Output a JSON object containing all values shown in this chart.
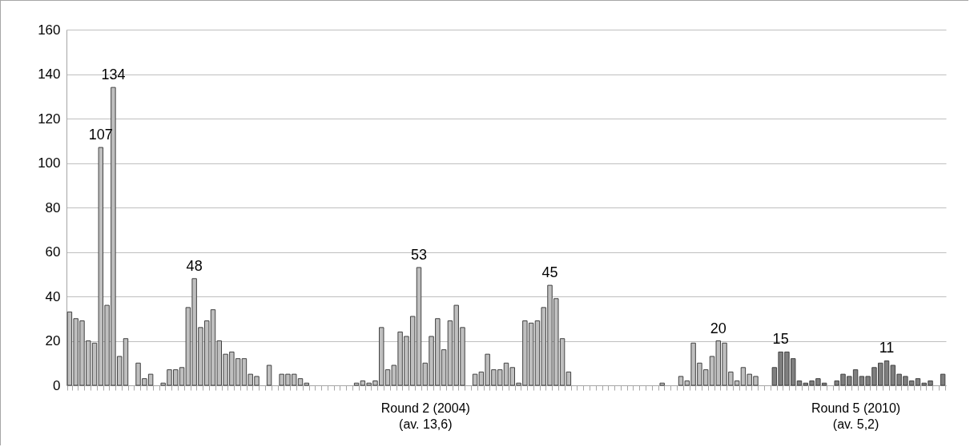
{
  "chart_data": {
    "type": "bar",
    "categories": [
      null,
      null,
      null,
      null,
      null,
      null,
      null,
      null,
      null,
      null,
      null,
      null,
      null,
      null,
      null,
      null,
      null,
      null,
      null,
      null,
      null,
      null,
      null,
      null,
      null,
      null,
      null,
      null,
      null,
      null,
      null,
      null,
      null,
      null,
      null,
      null,
      null,
      null,
      null,
      null,
      null,
      null,
      null,
      null,
      null,
      null,
      null,
      null,
      null,
      null,
      null,
      null,
      null,
      null,
      null,
      null,
      null,
      "Round 2 (2004)\n(av. 13,6)",
      null,
      null,
      null,
      null,
      null,
      null,
      null,
      null,
      null,
      null,
      null,
      null,
      null,
      null,
      null,
      null,
      null,
      null,
      null,
      null,
      null,
      null,
      null,
      null,
      null,
      null,
      null,
      null,
      null,
      null,
      null,
      null,
      null,
      null,
      null,
      null,
      null,
      null,
      null,
      null,
      null,
      null,
      null,
      null,
      null,
      null,
      null,
      null,
      null,
      null,
      null,
      null,
      null,
      null,
      null,
      null,
      null,
      null,
      null,
      null,
      null,
      null,
      null,
      null,
      null,
      null,
      null,
      null,
      "Round 5 (2010)\n(av. 5,2)",
      null,
      null,
      null,
      null,
      null,
      null,
      null,
      null,
      null,
      null,
      null,
      null,
      null,
      null
    ],
    "values": [
      33,
      30,
      29,
      20,
      19,
      107,
      36,
      134,
      13,
      21,
      0,
      10,
      3,
      5,
      0,
      1,
      7,
      7,
      8,
      35,
      48,
      26,
      29,
      34,
      20,
      14,
      15,
      12,
      12,
      5,
      4,
      0,
      9,
      0,
      5,
      5,
      5,
      3,
      1,
      0,
      0,
      0,
      0,
      0,
      0,
      0,
      1,
      2,
      1,
      2,
      26,
      7,
      9,
      24,
      22,
      31,
      53,
      10,
      22,
      30,
      16,
      29,
      36,
      26,
      0,
      5,
      6,
      14,
      7,
      7,
      10,
      8,
      1,
      29,
      28,
      29,
      35,
      45,
      39,
      21,
      6,
      0,
      0,
      0,
      0,
      0,
      0,
      0,
      0,
      0,
      0,
      0,
      0,
      0,
      0,
      1,
      0,
      0,
      4,
      2,
      19,
      10,
      7,
      13,
      20,
      19,
      6,
      2,
      8,
      5,
      4,
      0,
      0,
      8,
      15,
      15,
      12,
      2,
      1,
      2,
      3,
      1,
      0,
      2,
      5,
      4,
      7,
      4,
      4,
      8,
      10,
      11,
      9,
      5,
      4,
      2,
      3,
      1,
      2,
      0,
      5
    ],
    "value_labels": [
      null,
      null,
      null,
      null,
      null,
      "107",
      null,
      "134",
      null,
      null,
      null,
      null,
      null,
      null,
      null,
      null,
      null,
      null,
      null,
      null,
      "48",
      null,
      null,
      null,
      null,
      null,
      null,
      null,
      null,
      null,
      null,
      null,
      null,
      null,
      null,
      null,
      null,
      null,
      null,
      null,
      null,
      null,
      null,
      null,
      null,
      null,
      null,
      null,
      null,
      null,
      null,
      null,
      null,
      null,
      null,
      null,
      "53",
      null,
      null,
      null,
      null,
      null,
      null,
      null,
      null,
      null,
      null,
      null,
      null,
      null,
      null,
      null,
      null,
      null,
      null,
      null,
      null,
      "45",
      null,
      null,
      null,
      null,
      null,
      null,
      null,
      null,
      null,
      null,
      null,
      null,
      null,
      null,
      null,
      null,
      null,
      null,
      null,
      null,
      null,
      null,
      null,
      null,
      null,
      null,
      "20",
      null,
      null,
      null,
      null,
      null,
      null,
      null,
      null,
      null,
      "15",
      null,
      null,
      null,
      null,
      null,
      null,
      null,
      null,
      null,
      null,
      null,
      null,
      null,
      null,
      null,
      null,
      "11",
      null,
      null,
      null,
      null,
      null,
      null,
      null,
      null,
      null
    ],
    "colors": [
      "#bfbfbf",
      "#bfbfbf",
      "#bfbfbf",
      "#bfbfbf",
      "#bfbfbf",
      "#bfbfbf",
      "#bfbfbf",
      "#bfbfbf",
      "#bfbfbf",
      "#bfbfbf",
      "#bfbfbf",
      "#bfbfbf",
      "#bfbfbf",
      "#bfbfbf",
      "#bfbfbf",
      "#bfbfbf",
      "#bfbfbf",
      "#bfbfbf",
      "#bfbfbf",
      "#bfbfbf",
      "#bfbfbf",
      "#bfbfbf",
      "#bfbfbf",
      "#bfbfbf",
      "#bfbfbf",
      "#bfbfbf",
      "#bfbfbf",
      "#bfbfbf",
      "#bfbfbf",
      "#bfbfbf",
      "#bfbfbf",
      "#bfbfbf",
      "#bfbfbf",
      "#bfbfbf",
      "#bfbfbf",
      "#bfbfbf",
      "#bfbfbf",
      "#bfbfbf",
      "#bfbfbf",
      "#bfbfbf",
      "#bfbfbf",
      "#bfbfbf",
      "#bfbfbf",
      "#bfbfbf",
      "#bfbfbf",
      "#bfbfbf",
      "#bfbfbf",
      "#bfbfbf",
      "#bfbfbf",
      "#bfbfbf",
      "#bfbfbf",
      "#bfbfbf",
      "#bfbfbf",
      "#bfbfbf",
      "#bfbfbf",
      "#bfbfbf",
      "#bfbfbf",
      "#bfbfbf",
      "#bfbfbf",
      "#bfbfbf",
      "#bfbfbf",
      "#bfbfbf",
      "#bfbfbf",
      "#bfbfbf",
      "#bfbfbf",
      "#bfbfbf",
      "#bfbfbf",
      "#bfbfbf",
      "#bfbfbf",
      "#bfbfbf",
      "#bfbfbf",
      "#bfbfbf",
      "#bfbfbf",
      "#bfbfbf",
      "#bfbfbf",
      "#bfbfbf",
      "#bfbfbf",
      "#bfbfbf",
      "#bfbfbf",
      "#bfbfbf",
      "#bfbfbf",
      "#bfbfbf",
      "#bfbfbf",
      "#bfbfbf",
      "#bfbfbf",
      "#bfbfbf",
      "#bfbfbf",
      "#bfbfbf",
      "#bfbfbf",
      "#bfbfbf",
      "#bfbfbf",
      "#bfbfbf",
      "#bfbfbf",
      "#bfbfbf",
      "#bfbfbf",
      "#bfbfbf",
      "#bfbfbf",
      "#bfbfbf",
      "#bfbfbf",
      "#bfbfbf",
      "#bfbfbf",
      "#bfbfbf",
      "#bfbfbf",
      "#bfbfbf",
      "#bfbfbf",
      "#bfbfbf",
      "#bfbfbf",
      "#bfbfbf",
      "#bfbfbf",
      "#bfbfbf",
      "#bfbfbf",
      "#bfbfbf",
      "#bfbfbf",
      "#7f7f7f",
      "#7f7f7f",
      "#7f7f7f",
      "#7f7f7f",
      "#7f7f7f",
      "#7f7f7f",
      "#7f7f7f",
      "#7f7f7f",
      "#7f7f7f",
      "#7f7f7f",
      "#7f7f7f",
      "#7f7f7f",
      "#7f7f7f",
      "#7f7f7f",
      "#7f7f7f",
      "#7f7f7f",
      "#7f7f7f",
      "#7f7f7f",
      "#7f7f7f",
      "#7f7f7f",
      "#7f7f7f",
      "#7f7f7f",
      "#7f7f7f",
      "#7f7f7f",
      "#7f7f7f",
      "#7f7f7f",
      "#7f7f7f",
      "#7f7f7f"
    ],
    "ylim": [
      0,
      160
    ],
    "yticks": [
      0,
      20,
      40,
      60,
      80,
      100,
      120,
      140,
      160
    ],
    "grid": "y"
  }
}
